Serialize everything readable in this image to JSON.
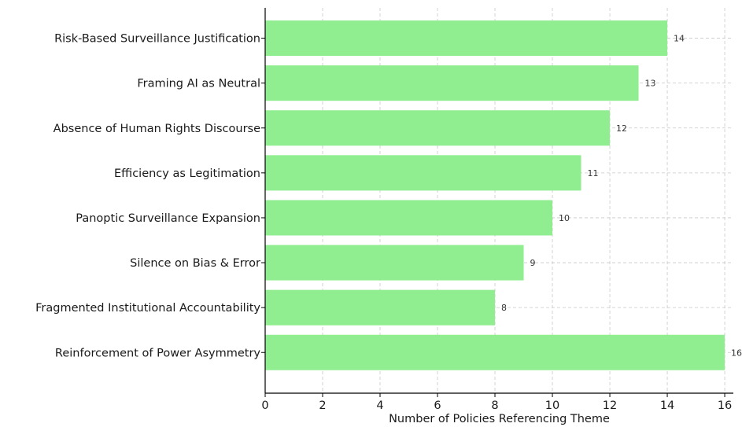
{
  "chart_data": {
    "type": "bar",
    "orientation": "horizontal",
    "categories": [
      "Risk-Based Surveillance Justification",
      "Framing AI as Neutral",
      "Absence of Human Rights Discourse",
      "Efficiency as Legitimation",
      "Panoptic Surveillance Expansion",
      "Silence on Bias & Error",
      "Fragmented Institutional Accountability",
      "Reinforcement of Power Asymmetry"
    ],
    "values": [
      14,
      13,
      12,
      11,
      10,
      9,
      8,
      16
    ],
    "value_labels": [
      "14",
      "13",
      "12",
      "11",
      "10",
      "9",
      "8",
      "16"
    ],
    "title": "",
    "xlabel": "Number of Policies Referencing Theme",
    "ylabel": "",
    "xlim": [
      0,
      16.3
    ],
    "x_ticks": [
      0,
      2,
      4,
      6,
      8,
      10,
      12,
      14,
      16
    ],
    "x_tick_labels": [
      "0",
      "2",
      "4",
      "6",
      "8",
      "10",
      "12",
      "14",
      "16"
    ],
    "grid": true,
    "bar_color": "#90ee90"
  }
}
